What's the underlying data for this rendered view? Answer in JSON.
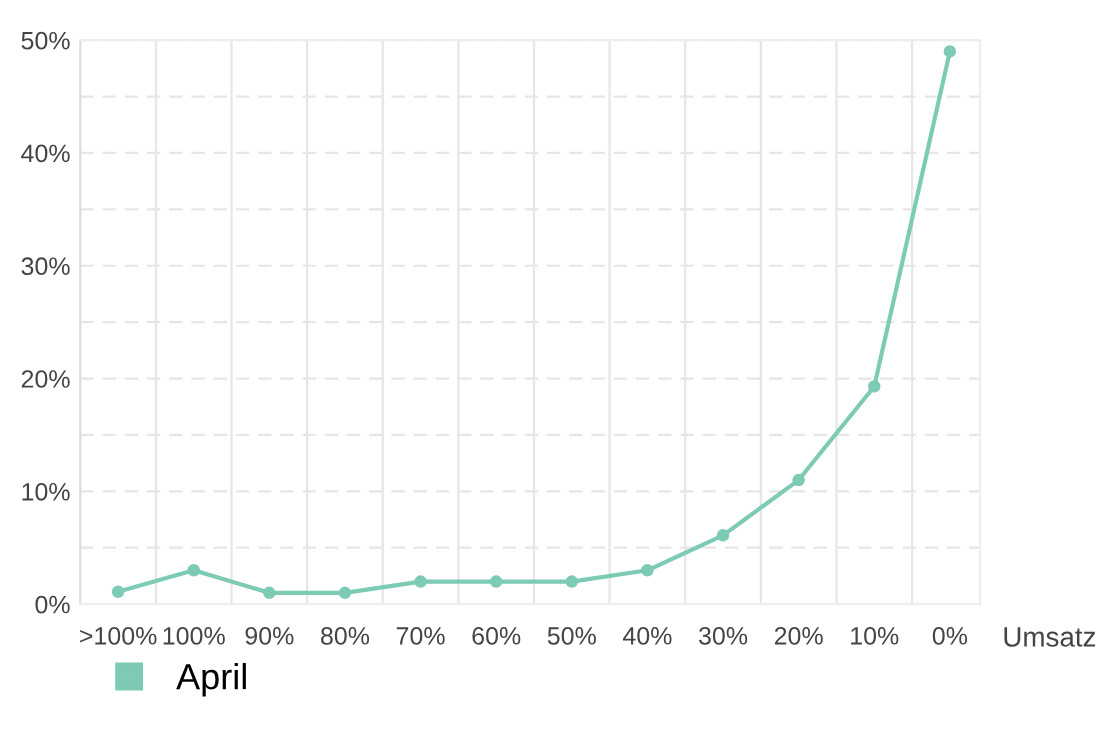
{
  "chart_data": {
    "type": "line",
    "xlabel": "Umsatz",
    "categories": [
      ">100%",
      "100%",
      "90%",
      "80%",
      "70%",
      "60%",
      "50%",
      "40%",
      "30%",
      "20%",
      "10%",
      "0%"
    ],
    "series": [
      {
        "name": "April",
        "color": "#7dcab5",
        "values": [
          1.1,
          3.0,
          1.0,
          1.0,
          2.0,
          2.0,
          2.0,
          3.0,
          6.1,
          11.0,
          19.3,
          49.0
        ]
      }
    ],
    "ylim": [
      0,
      50
    ],
    "yticks": [
      {
        "value": 0,
        "label": "0%"
      },
      {
        "value": 5,
        "label": null
      },
      {
        "value": 10,
        "label": "10%"
      },
      {
        "value": 15,
        "label": null
      },
      {
        "value": 20,
        "label": "20%"
      },
      {
        "value": 25,
        "label": null
      },
      {
        "value": 30,
        "label": "30%"
      },
      {
        "value": 35,
        "label": null
      },
      {
        "value": 40,
        "label": "40%"
      },
      {
        "value": 45,
        "label": null
      },
      {
        "value": 50,
        "label": "50%"
      }
    ],
    "grid": true,
    "legend": "bottom left",
    "marker": "circle",
    "line_style": "solid"
  }
}
